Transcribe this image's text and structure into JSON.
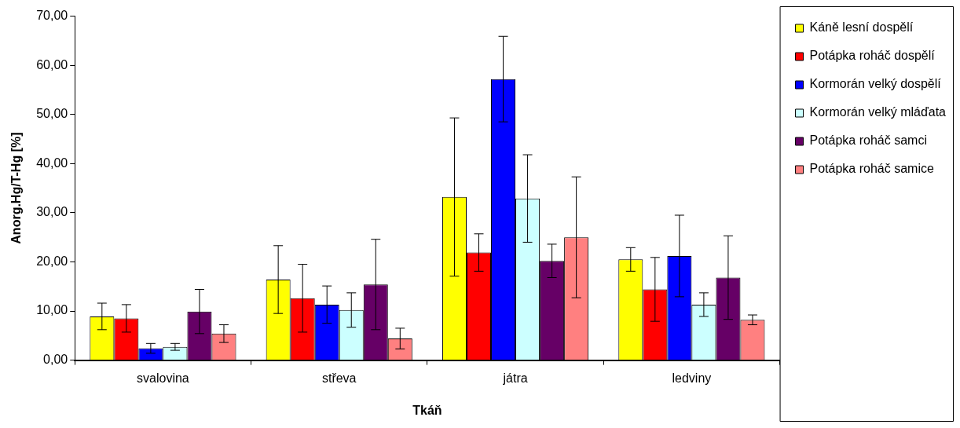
{
  "chart_data": {
    "type": "bar",
    "xlabel": "Tkáň",
    "ylabel": "Anorg.Hg/T-Hg [%]",
    "categories": [
      "svalovina",
      "střeva",
      "játra",
      "ledviny"
    ],
    "ylim": [
      0,
      70
    ],
    "yticks": [
      {
        "value": 0,
        "label": "0,00"
      },
      {
        "value": 10,
        "label": "10,00"
      },
      {
        "value": 20,
        "label": "20,00"
      },
      {
        "value": 30,
        "label": "30,00"
      },
      {
        "value": 40,
        "label": "40,00"
      },
      {
        "value": 50,
        "label": "50,00"
      },
      {
        "value": 60,
        "label": "60,00"
      },
      {
        "value": 70,
        "label": "70,00"
      }
    ],
    "grid": false,
    "legend": "top right",
    "series": [
      {
        "name": "Káně lesní dospělí",
        "color": "#ffff00",
        "values": [
          8.9,
          16.4,
          33.2,
          20.5
        ],
        "errors": [
          2.7,
          6.9,
          16.1,
          2.4
        ]
      },
      {
        "name": "Potápka roháč dospělí",
        "color": "#ff0000",
        "values": [
          8.5,
          12.6,
          21.9,
          14.4
        ],
        "errors": [
          2.8,
          6.9,
          3.8,
          6.5
        ]
      },
      {
        "name": "Kormorán velký dospělí",
        "color": "#0000ff",
        "values": [
          2.4,
          11.3,
          57.2,
          21.2
        ],
        "errors": [
          1.0,
          3.8,
          8.7,
          8.3
        ]
      },
      {
        "name": "Kormorán velký mláďata",
        "color": "#ccffff",
        "values": [
          2.7,
          10.2,
          32.9,
          11.3
        ],
        "errors": [
          0.7,
          3.5,
          8.9,
          2.4
        ]
      },
      {
        "name": "Potápka roháč samci",
        "color": "#660066",
        "values": [
          9.9,
          15.4,
          20.2,
          16.8
        ],
        "errors": [
          4.5,
          9.2,
          3.4,
          8.5
        ]
      },
      {
        "name": "Potápka roháč samice",
        "color": "#ff8080",
        "values": [
          5.4,
          4.4,
          25.0,
          8.2
        ],
        "errors": [
          1.8,
          2.1,
          12.3,
          1.0
        ]
      }
    ]
  }
}
